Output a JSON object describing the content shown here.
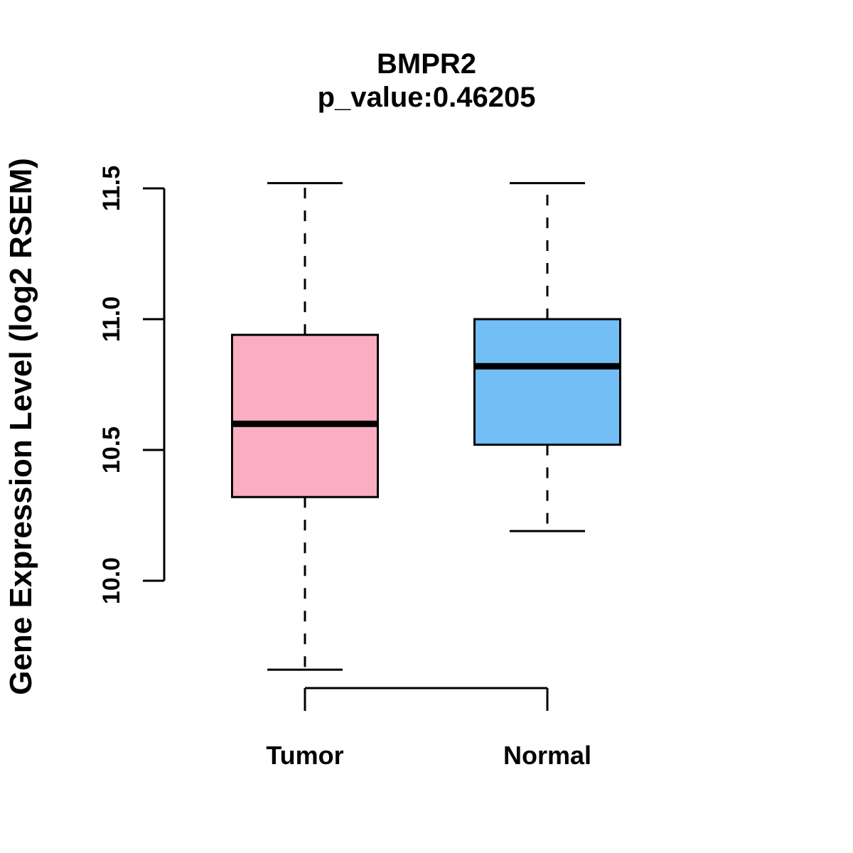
{
  "title": {
    "gene": "BMPR2",
    "p_value_line": "p_value:0.46205"
  },
  "chart_data": {
    "type": "boxplot",
    "title": "BMPR2",
    "subtitle": "p_value:0.46205",
    "p_value": 0.46205,
    "ylabel": "Gene Expression Level (log2 RSEM)",
    "xlabel": "",
    "categories": [
      "Tumor",
      "Normal"
    ],
    "yticks": [
      "10.0",
      "10.5",
      "11.0",
      "11.5"
    ],
    "ylim": [
      9.55,
      11.6
    ],
    "grid": false,
    "legend_position": "none",
    "series": [
      {
        "name": "Tumor",
        "color": "#FBAEC3",
        "whisker_low": 9.66,
        "q1": 10.32,
        "median": 10.6,
        "q3": 10.94,
        "whisker_high": 11.52
      },
      {
        "name": "Normal",
        "color": "#73BEF5",
        "whisker_low": 10.19,
        "q1": 10.52,
        "median": 10.82,
        "q3": 11.0,
        "whisker_high": 11.52
      }
    ],
    "comparison_bracket": {
      "connects": [
        "Tumor",
        "Normal"
      ]
    }
  },
  "colors": {
    "stroke": "#000000",
    "background": "#FFFFFF",
    "tumor_fill": "#FBAEC3",
    "normal_fill": "#73BEF5"
  }
}
